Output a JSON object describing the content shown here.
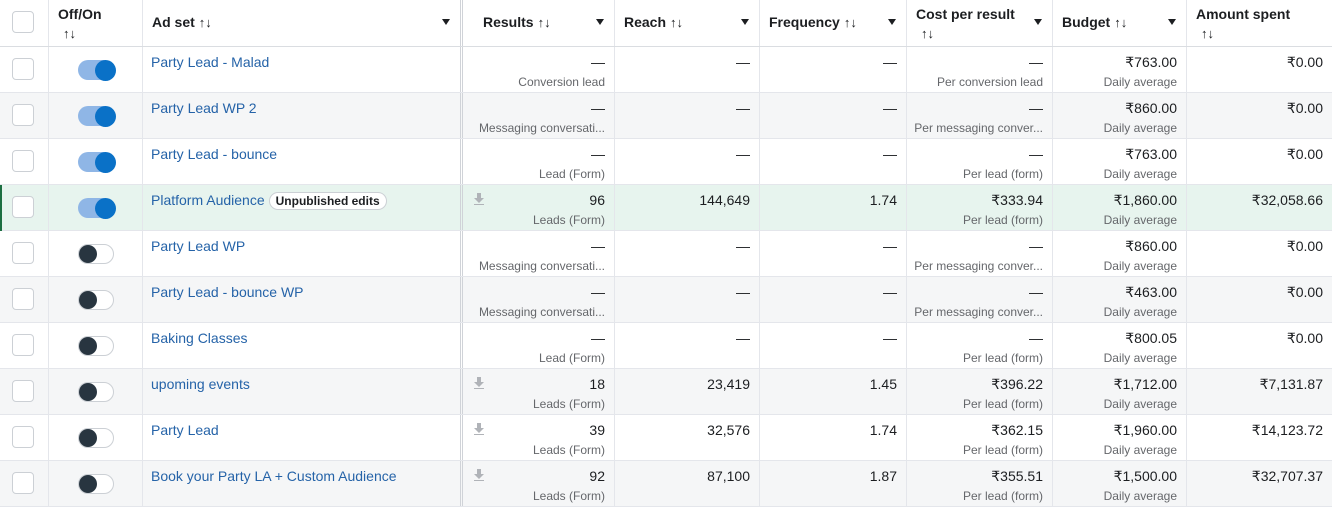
{
  "headers": {
    "toggle": "Off/On",
    "name": "Ad set",
    "results": "Results",
    "reach": "Reach",
    "frequency": "Frequency",
    "cost": "Cost per result",
    "budget": "Budget",
    "amount": "Amount spent",
    "sort_icon": "↑↓"
  },
  "rows": [
    {
      "name": "Party Lead - Malad",
      "on": true,
      "badge": "",
      "results": "—",
      "results_sub": "Conversion lead",
      "reach": "—",
      "frequency": "—",
      "cost": "—",
      "cost_sub": "Per conversion lead",
      "budget": "₹763.00",
      "budget_sub": "Daily average",
      "amount": "₹0.00",
      "download": false
    },
    {
      "name": "Party Lead WP 2",
      "on": true,
      "badge": "",
      "results": "—",
      "results_sub": "Messaging conversati...",
      "reach": "—",
      "frequency": "—",
      "cost": "—",
      "cost_sub": "Per messaging conver...",
      "budget": "₹860.00",
      "budget_sub": "Daily average",
      "amount": "₹0.00",
      "download": false
    },
    {
      "name": "Party Lead - bounce",
      "on": true,
      "badge": "",
      "results": "—",
      "results_sub": "Lead (Form)",
      "reach": "—",
      "frequency": "—",
      "cost": "—",
      "cost_sub": "Per lead (form)",
      "budget": "₹763.00",
      "budget_sub": "Daily average",
      "amount": "₹0.00",
      "download": false
    },
    {
      "name": "Platform Audience",
      "on": true,
      "badge": "Unpublished edits",
      "results": "96",
      "results_sub": "Leads (Form)",
      "reach": "144,649",
      "frequency": "1.74",
      "cost": "₹333.94",
      "cost_sub": "Per lead (form)",
      "budget": "₹1,860.00",
      "budget_sub": "Daily average",
      "amount": "₹32,058.66",
      "download": true
    },
    {
      "name": "Party Lead WP",
      "on": false,
      "badge": "",
      "results": "—",
      "results_sub": "Messaging conversati...",
      "reach": "—",
      "frequency": "—",
      "cost": "—",
      "cost_sub": "Per messaging conver...",
      "budget": "₹860.00",
      "budget_sub": "Daily average",
      "amount": "₹0.00",
      "download": false
    },
    {
      "name": "Party Lead - bounce WP",
      "on": false,
      "badge": "",
      "results": "—",
      "results_sub": "Messaging conversati...",
      "reach": "—",
      "frequency": "—",
      "cost": "—",
      "cost_sub": "Per messaging conver...",
      "budget": "₹463.00",
      "budget_sub": "Daily average",
      "amount": "₹0.00",
      "download": false
    },
    {
      "name": "Baking Classes",
      "on": false,
      "badge": "",
      "results": "—",
      "results_sub": "Lead (Form)",
      "reach": "—",
      "frequency": "—",
      "cost": "—",
      "cost_sub": "Per lead (form)",
      "budget": "₹800.05",
      "budget_sub": "Daily average",
      "amount": "₹0.00",
      "download": false
    },
    {
      "name": "upoming events",
      "on": false,
      "badge": "",
      "results": "18",
      "results_sub": "Leads (Form)",
      "reach": "23,419",
      "frequency": "1.45",
      "cost": "₹396.22",
      "cost_sub": "Per lead (form)",
      "budget": "₹1,712.00",
      "budget_sub": "Daily average",
      "amount": "₹7,131.87",
      "download": true
    },
    {
      "name": "Party Lead",
      "on": false,
      "badge": "",
      "results": "39",
      "results_sub": "Leads (Form)",
      "reach": "32,576",
      "frequency": "1.74",
      "cost": "₹362.15",
      "cost_sub": "Per lead (form)",
      "budget": "₹1,960.00",
      "budget_sub": "Daily average",
      "amount": "₹14,123.72",
      "download": true
    },
    {
      "name": "Book your Party LA + Custom Audience",
      "on": false,
      "badge": "",
      "results": "92",
      "results_sub": "Leads (Form)",
      "reach": "87,100",
      "frequency": "1.87",
      "cost": "₹355.51",
      "cost_sub": "Per lead (form)",
      "budget": "₹1,500.00",
      "budget_sub": "Daily average",
      "amount": "₹32,707.37",
      "download": true
    }
  ],
  "colors": {
    "toggle_on": "#0a71c7",
    "toggle_off": "#283540",
    "link": "#2563a8",
    "highlight": "#e7f4ee"
  }
}
